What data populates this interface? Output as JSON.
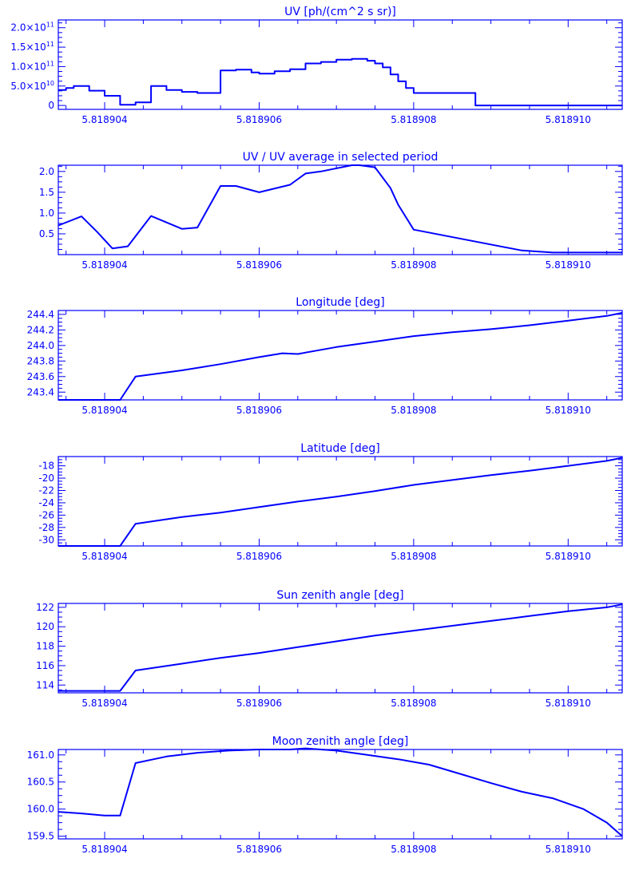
{
  "figure": {
    "line_color": "#0000ff",
    "background": "#ffffff"
  },
  "chart_data": [
    {
      "type": "line",
      "title": "UV [ph/(cm^2 s sr)]",
      "xlabel": "",
      "ylabel": "",
      "step": true,
      "xlim": [
        5.8189034,
        5.8189107
      ],
      "ylim": [
        -10000000000,
        220000000000
      ],
      "x_ticks": [
        {
          "value": 5.818904,
          "label": "5.818904"
        },
        {
          "value": 5.818906,
          "label": "5.818906"
        },
        {
          "value": 5.818908,
          "label": "5.818908"
        },
        {
          "value": 5.81891,
          "label": "5.818910"
        }
      ],
      "y_ticks": [
        {
          "value": 0,
          "label": "0",
          "base": "0",
          "exp": ""
        },
        {
          "value": 50000000000,
          "label": "5.0×10¹⁰",
          "base": "5.0×10",
          "exp": "10"
        },
        {
          "value": 100000000000,
          "label": "1.0×10¹¹",
          "base": "1.0×10",
          "exp": "11"
        },
        {
          "value": 150000000000,
          "label": "1.5×10¹¹",
          "base": "1.5×10",
          "exp": "11"
        },
        {
          "value": 200000000000,
          "label": "2.0×10¹¹",
          "base": "2.0×10",
          "exp": "11"
        }
      ],
      "x": [
        5.8189034,
        5.8189035,
        5.8189036,
        5.8189038,
        5.818904,
        5.8189042,
        5.8189044,
        5.8189046,
        5.8189048,
        5.818905,
        5.8189052,
        5.8189055,
        5.8189057,
        5.8189059,
        5.818906,
        5.8189062,
        5.8189064,
        5.8189066,
        5.8189068,
        5.818907,
        5.8189072,
        5.8189074,
        5.8189075,
        5.8189076,
        5.8189077,
        5.8189078,
        5.8189079,
        5.818908,
        5.8189088,
        5.8189107
      ],
      "y": [
        40000000000,
        45000000000,
        50000000000,
        38000000000,
        25000000000,
        2000000000,
        8000000000,
        50000000000,
        40000000000,
        35000000000,
        32000000000,
        90000000000,
        92000000000,
        85000000000,
        82000000000,
        88000000000,
        93000000000,
        108000000000,
        112000000000,
        118000000000,
        120000000000,
        115000000000,
        108000000000,
        98000000000,
        80000000000,
        62000000000,
        45000000000,
        32000000000,
        0,
        0
      ]
    },
    {
      "type": "line",
      "title": "UV / UV average in selected period",
      "xlabel": "",
      "ylabel": "",
      "step": false,
      "xlim": [
        5.8189034,
        5.8189107
      ],
      "ylim": [
        0,
        2.15
      ],
      "x_ticks": [
        {
          "value": 5.818904,
          "label": "5.818904"
        },
        {
          "value": 5.818906,
          "label": "5.818906"
        },
        {
          "value": 5.818908,
          "label": "5.818908"
        },
        {
          "value": 5.81891,
          "label": "5.818910"
        }
      ],
      "y_ticks": [
        {
          "value": 0.5,
          "label": "0.5"
        },
        {
          "value": 1.0,
          "label": "1.0"
        },
        {
          "value": 1.5,
          "label": "1.5"
        },
        {
          "value": 2.0,
          "label": "2.0"
        }
      ],
      "x": [
        5.8189034,
        5.8189037,
        5.8189039,
        5.8189041,
        5.8189043,
        5.8189046,
        5.818905,
        5.8189052,
        5.8189055,
        5.8189057,
        5.818906,
        5.8189064,
        5.8189066,
        5.8189068,
        5.8189072,
        5.8189073,
        5.8189075,
        5.8189077,
        5.8189078,
        5.818908,
        5.8189094,
        5.8189098,
        5.8189107
      ],
      "y": [
        0.7,
        0.92,
        0.55,
        0.15,
        0.2,
        0.93,
        0.62,
        0.65,
        1.65,
        1.65,
        1.5,
        1.68,
        1.95,
        2.0,
        2.15,
        2.15,
        2.1,
        1.6,
        1.2,
        0.6,
        0.1,
        0.05,
        0.05
      ]
    },
    {
      "type": "line",
      "title": "Longitude [deg]",
      "xlabel": "",
      "ylabel": "",
      "step": false,
      "xlim": [
        5.8189034,
        5.8189107
      ],
      "ylim": [
        243.3,
        244.45
      ],
      "x_ticks": [
        {
          "value": 5.818904,
          "label": "5.818904"
        },
        {
          "value": 5.818906,
          "label": "5.818906"
        },
        {
          "value": 5.818908,
          "label": "5.818908"
        },
        {
          "value": 5.81891,
          "label": "5.818910"
        }
      ],
      "y_ticks": [
        {
          "value": 243.4,
          "label": "243.4"
        },
        {
          "value": 243.6,
          "label": "243.6"
        },
        {
          "value": 243.8,
          "label": "243.8"
        },
        {
          "value": 244.0,
          "label": "244.0"
        },
        {
          "value": 244.2,
          "label": "244.2"
        },
        {
          "value": 244.4,
          "label": "244.4"
        }
      ],
      "x": [
        5.8189034,
        5.8189042,
        5.8189044,
        5.818905,
        5.8189055,
        5.818906,
        5.8189063,
        5.8189065,
        5.818907,
        5.8189075,
        5.818908,
        5.8189085,
        5.818909,
        5.8189095,
        5.81891,
        5.8189105,
        5.8189107
      ],
      "y": [
        243.3,
        243.3,
        243.6,
        243.68,
        243.76,
        243.85,
        243.9,
        243.89,
        243.98,
        244.05,
        244.12,
        244.17,
        244.21,
        244.26,
        244.32,
        244.38,
        244.42
      ]
    },
    {
      "type": "line",
      "title": "Latitude [deg]",
      "xlabel": "",
      "ylabel": "",
      "step": false,
      "xlim": [
        5.8189034,
        5.8189107
      ],
      "ylim": [
        -31,
        -16.5
      ],
      "x_ticks": [
        {
          "value": 5.818904,
          "label": "5.818904"
        },
        {
          "value": 5.818906,
          "label": "5.818906"
        },
        {
          "value": 5.818908,
          "label": "5.818908"
        },
        {
          "value": 5.81891,
          "label": "5.818910"
        }
      ],
      "y_ticks": [
        {
          "value": -30,
          "label": "-30"
        },
        {
          "value": -28,
          "label": "-28"
        },
        {
          "value": -26,
          "label": "-26"
        },
        {
          "value": -24,
          "label": "-24"
        },
        {
          "value": -22,
          "label": "-22"
        },
        {
          "value": -20,
          "label": "-20"
        },
        {
          "value": -18,
          "label": "-18"
        }
      ],
      "x": [
        5.8189034,
        5.8189042,
        5.8189044,
        5.818905,
        5.8189055,
        5.818906,
        5.8189065,
        5.818907,
        5.8189075,
        5.818908,
        5.8189085,
        5.818909,
        5.8189095,
        5.81891,
        5.8189105,
        5.8189107
      ],
      "y": [
        -31,
        -31,
        -27.4,
        -26.3,
        -25.6,
        -24.7,
        -23.8,
        -23.0,
        -22.1,
        -21.1,
        -20.3,
        -19.5,
        -18.8,
        -18.0,
        -17.2,
        -16.7
      ]
    },
    {
      "type": "line",
      "title": "Sun zenith angle [deg]",
      "xlabel": "",
      "ylabel": "",
      "step": false,
      "xlim": [
        5.8189034,
        5.8189107
      ],
      "ylim": [
        113.2,
        122.4
      ],
      "x_ticks": [
        {
          "value": 5.818904,
          "label": "5.818904"
        },
        {
          "value": 5.818906,
          "label": "5.818906"
        },
        {
          "value": 5.818908,
          "label": "5.818908"
        },
        {
          "value": 5.81891,
          "label": "5.818910"
        }
      ],
      "y_ticks": [
        {
          "value": 114,
          "label": "114"
        },
        {
          "value": 116,
          "label": "116"
        },
        {
          "value": 118,
          "label": "118"
        },
        {
          "value": 120,
          "label": "120"
        },
        {
          "value": 122,
          "label": "122"
        }
      ],
      "x": [
        5.8189034,
        5.8189042,
        5.8189044,
        5.818905,
        5.8189055,
        5.818906,
        5.8189065,
        5.818907,
        5.8189075,
        5.818908,
        5.8189085,
        5.818909,
        5.8189095,
        5.81891,
        5.8189105,
        5.8189107
      ],
      "y": [
        113.4,
        113.4,
        115.5,
        116.2,
        116.8,
        117.3,
        117.9,
        118.5,
        119.1,
        119.6,
        120.1,
        120.6,
        121.1,
        121.6,
        122.0,
        122.3
      ]
    },
    {
      "type": "line",
      "title": "Moon zenith angle [deg]",
      "xlabel": "",
      "ylabel": "",
      "step": false,
      "xlim": [
        5.8189034,
        5.8189107
      ],
      "ylim": [
        159.45,
        161.1
      ],
      "x_ticks": [
        {
          "value": 5.818904,
          "label": "5.818904"
        },
        {
          "value": 5.818906,
          "label": "5.818906"
        },
        {
          "value": 5.818908,
          "label": "5.818908"
        },
        {
          "value": 5.81891,
          "label": "5.818910"
        }
      ],
      "y_ticks": [
        {
          "value": 159.5,
          "label": "159.5"
        },
        {
          "value": 160.0,
          "label": "160.0"
        },
        {
          "value": 160.5,
          "label": "160.5"
        },
        {
          "value": 161.0,
          "label": "161.0"
        }
      ],
      "x": [
        5.8189034,
        5.8189037,
        5.818904,
        5.8189042,
        5.8189044,
        5.8189048,
        5.8189052,
        5.8189056,
        5.818906,
        5.8189064,
        5.8189066,
        5.818907,
        5.8189074,
        5.8189078,
        5.8189082,
        5.8189086,
        5.818909,
        5.8189094,
        5.8189098,
        5.8189102,
        5.8189105,
        5.8189107
      ],
      "y": [
        159.95,
        159.92,
        159.88,
        159.88,
        160.85,
        160.97,
        161.04,
        161.08,
        161.1,
        161.1,
        161.12,
        161.08,
        161.0,
        160.92,
        160.82,
        160.65,
        160.48,
        160.32,
        160.2,
        160.0,
        159.75,
        159.5
      ]
    }
  ]
}
